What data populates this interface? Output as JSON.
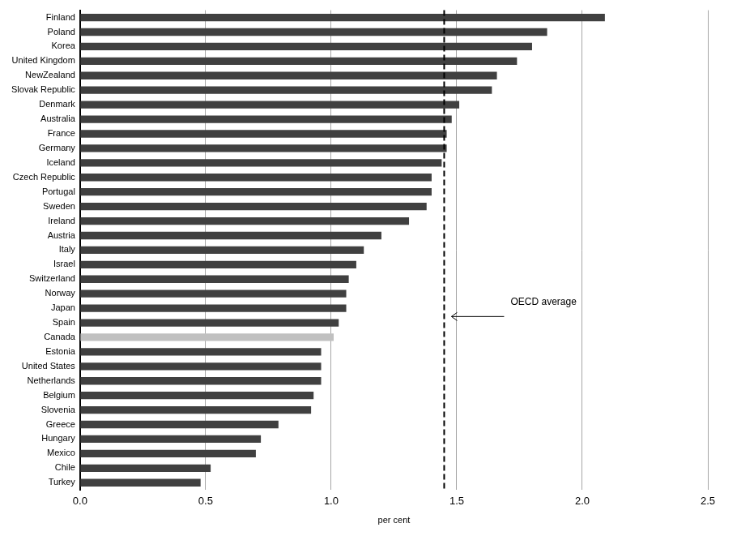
{
  "chart_data": {
    "type": "bar",
    "orientation": "horizontal",
    "categories": [
      "Finland",
      "Poland",
      "Korea",
      "United Kingdom",
      "NewZealand",
      "Slovak Republic",
      "Denmark",
      "Australia",
      "France",
      "Germany",
      "Iceland",
      "Czech Republic",
      "Portugal",
      "Sweden",
      "Ireland",
      "Austria",
      "Italy",
      "Israel",
      "Switzerland",
      "Norway",
      "Japan",
      "Spain",
      "Canada",
      "Estonia",
      "United States",
      "Netherlands",
      "Belgium",
      "Slovenia",
      "Greece",
      "Hungary",
      "Mexico",
      "Chile",
      "Turkey"
    ],
    "values": [
      2.09,
      1.86,
      1.8,
      1.74,
      1.66,
      1.64,
      1.51,
      1.48,
      1.46,
      1.46,
      1.44,
      1.4,
      1.4,
      1.38,
      1.31,
      1.2,
      1.13,
      1.1,
      1.07,
      1.06,
      1.06,
      1.03,
      1.01,
      0.96,
      0.96,
      0.96,
      0.93,
      0.92,
      0.79,
      0.72,
      0.7,
      0.52,
      0.48
    ],
    "colors": [
      "#404040",
      "#404040",
      "#404040",
      "#404040",
      "#404040",
      "#404040",
      "#404040",
      "#404040",
      "#404040",
      "#404040",
      "#404040",
      "#404040",
      "#404040",
      "#404040",
      "#404040",
      "#404040",
      "#404040",
      "#404040",
      "#404040",
      "#404040",
      "#404040",
      "#404040",
      "#c0c0c0",
      "#404040",
      "#404040",
      "#404040",
      "#404040",
      "#404040",
      "#404040",
      "#404040",
      "#404040",
      "#404040",
      "#404040"
    ],
    "xlabel": "per cent",
    "xlim": [
      0,
      2.5
    ],
    "xticks": [
      {
        "value": 0,
        "label": "0.0"
      },
      0.5,
      {
        "value": 1,
        "label": "1.0"
      },
      1.5,
      {
        "value": 2,
        "label": "2.0"
      },
      2.5
    ],
    "grid": true,
    "annotations": [
      {
        "text": "OECD average",
        "x": 1.45
      }
    ]
  }
}
